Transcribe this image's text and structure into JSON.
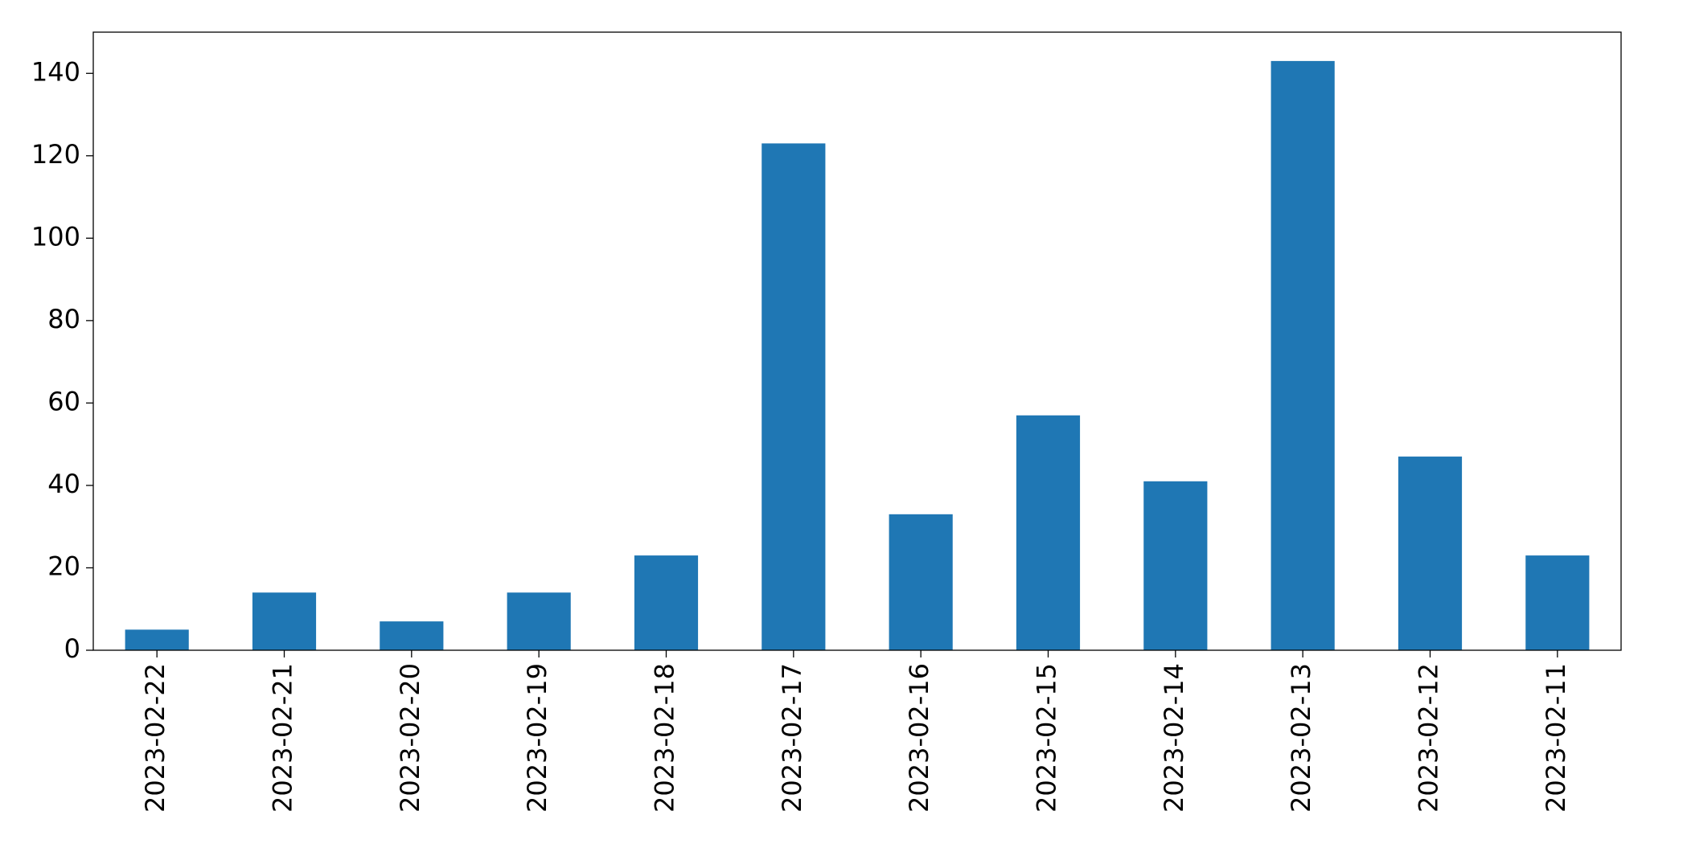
{
  "chart_data": {
    "type": "bar",
    "categories": [
      "2023-02-22",
      "2023-02-21",
      "2023-02-20",
      "2023-02-19",
      "2023-02-18",
      "2023-02-17",
      "2023-02-16",
      "2023-02-15",
      "2023-02-14",
      "2023-02-13",
      "2023-02-12",
      "2023-02-11"
    ],
    "values": [
      5,
      14,
      7,
      14,
      23,
      123,
      33,
      57,
      41,
      143,
      47,
      23
    ],
    "color": "#1f77b4",
    "ylim": [
      0,
      150
    ],
    "yticks": [
      0,
      20,
      40,
      60,
      80,
      100,
      120,
      140
    ],
    "grid": false
  }
}
